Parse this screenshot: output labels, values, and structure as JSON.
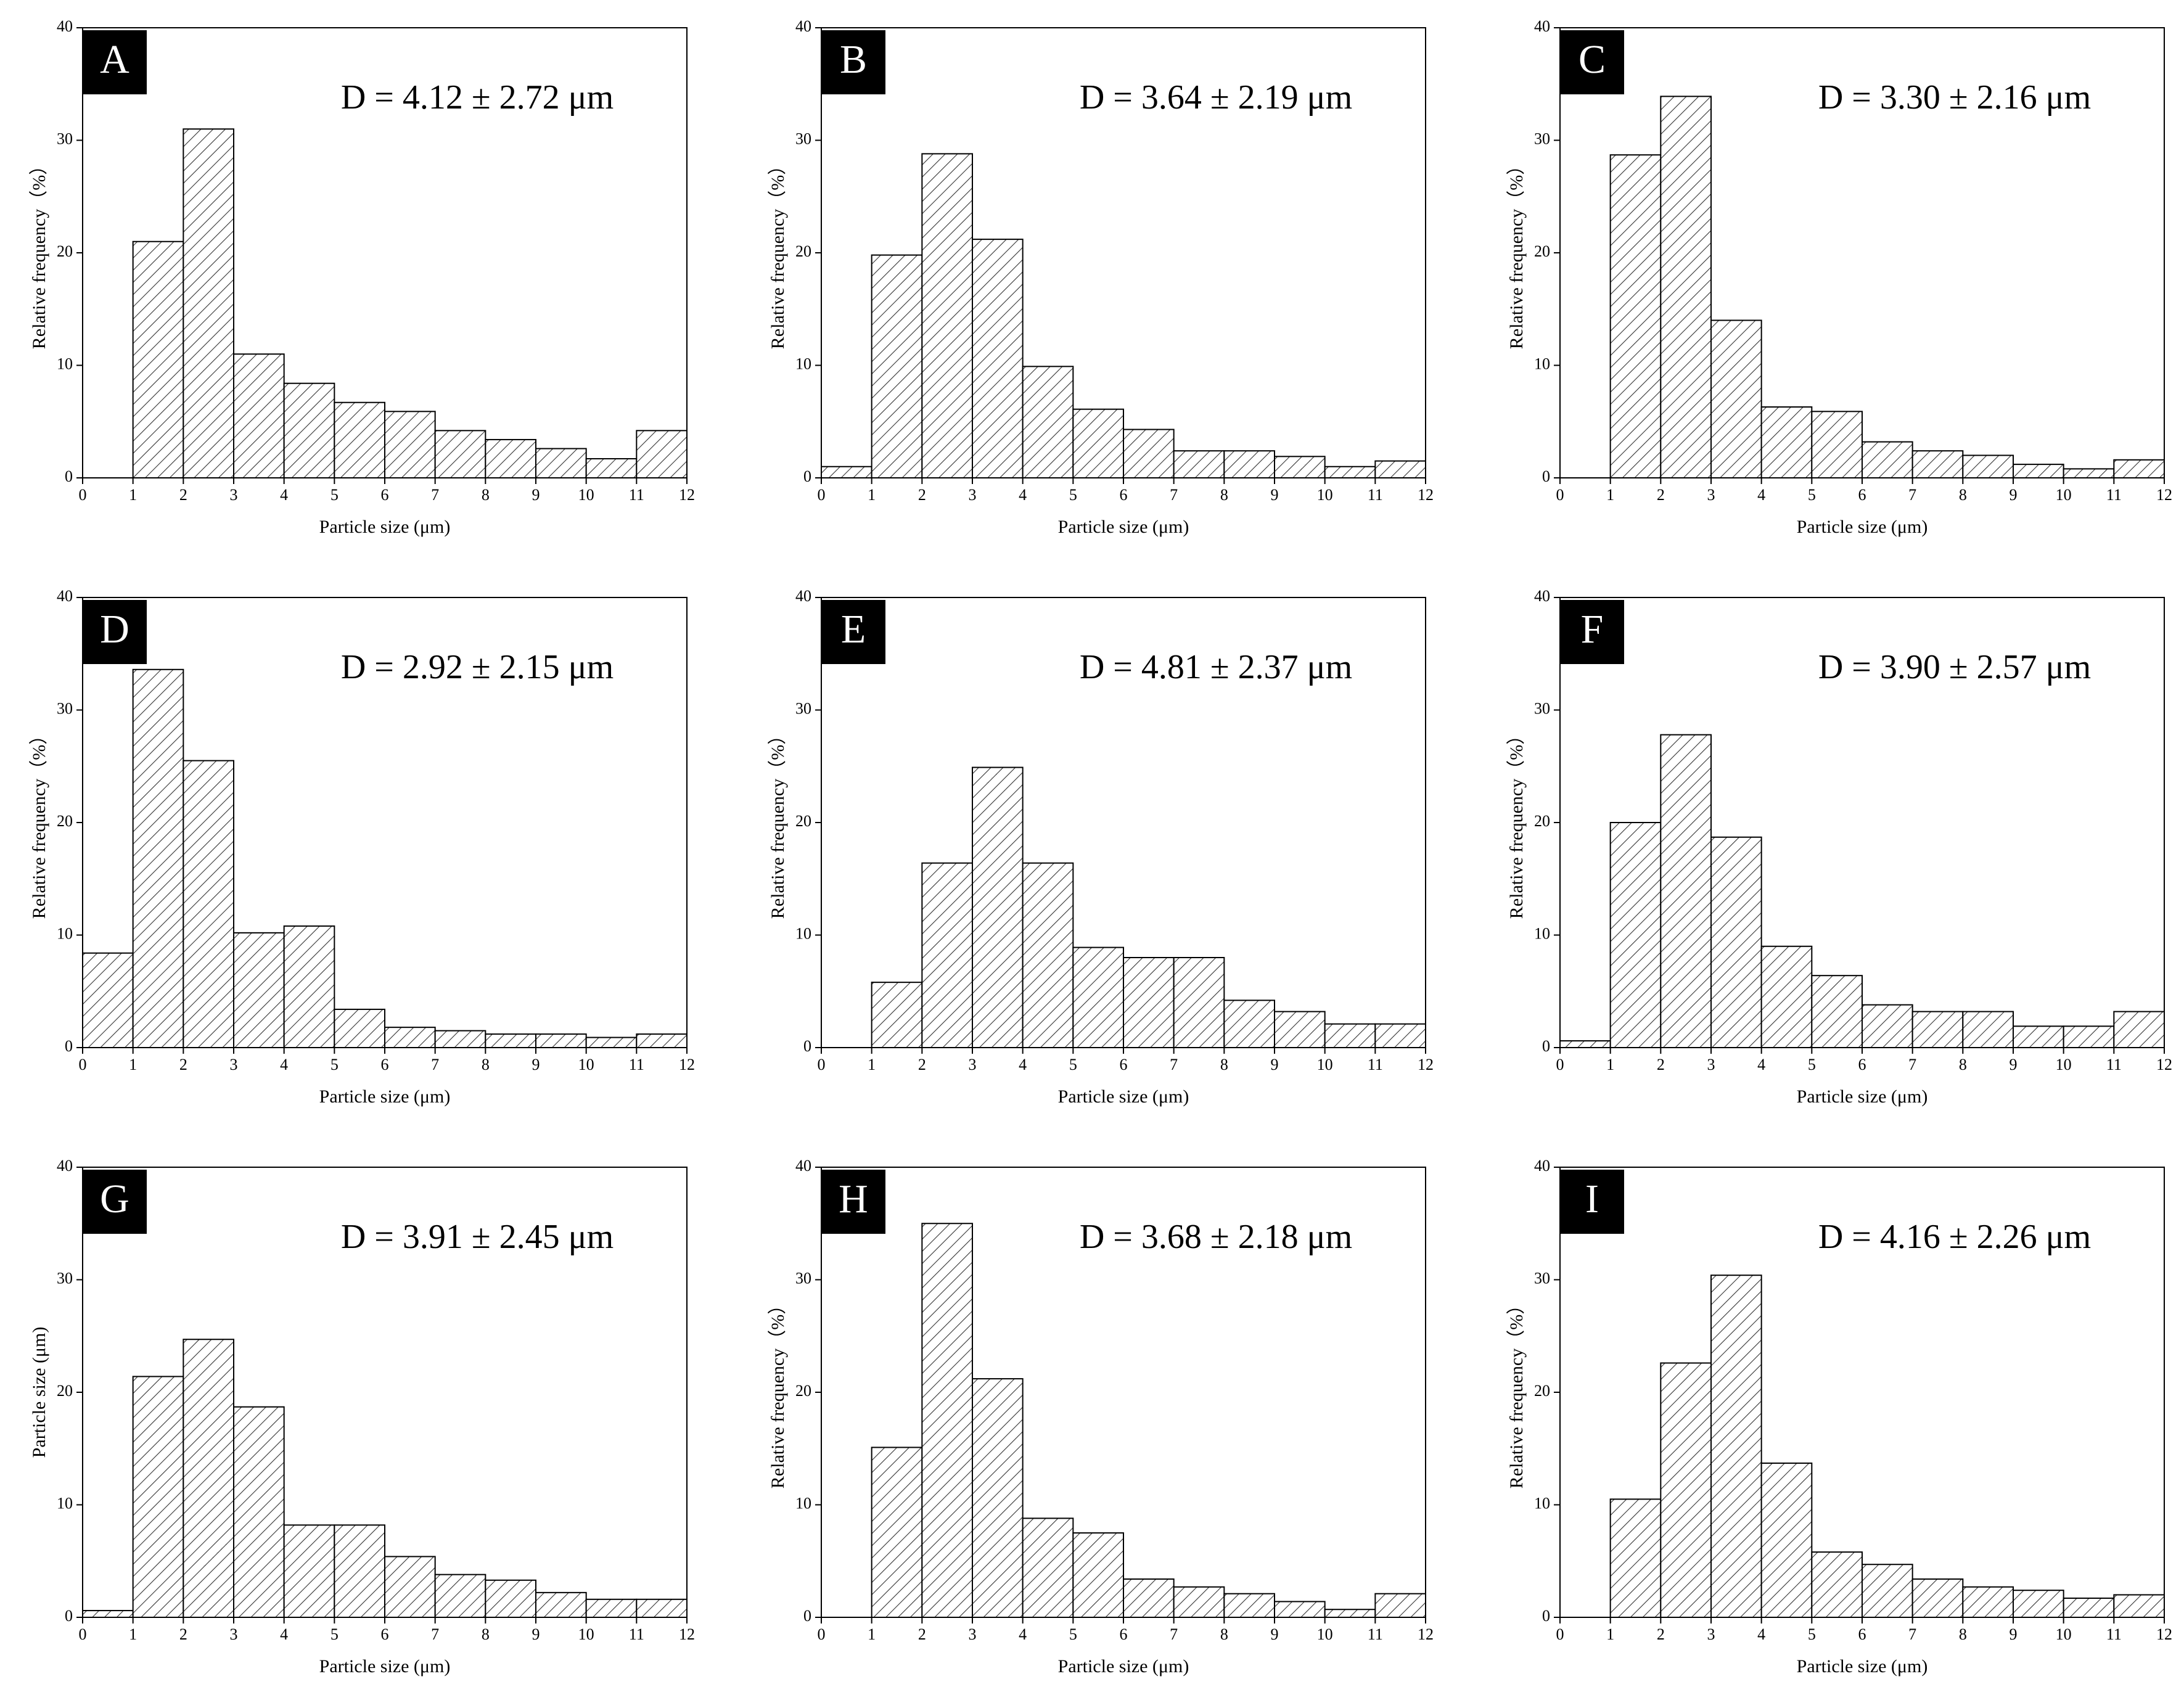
{
  "chart_data": [
    {
      "type": "histogram",
      "title": "A",
      "annotation": "D = 4.12 ± 2.72 μm",
      "xlabel": "Particle size (μm)",
      "ylabel": "Relative frequency（%）",
      "bins": [
        0,
        1,
        2,
        3,
        4,
        5,
        6,
        7,
        8,
        9,
        10,
        11,
        12
      ],
      "values": [
        0,
        21,
        31,
        11,
        8.4,
        6.7,
        5.9,
        4.2,
        3.4,
        2.6,
        1.7,
        4.2
      ],
      "color": "#333333",
      "xlim": [
        0,
        12
      ],
      "ylim": [
        0,
        40
      ],
      "xticks": [
        0,
        1,
        2,
        3,
        4,
        5,
        6,
        7,
        8,
        9,
        10,
        11,
        12
      ],
      "yticks": [
        0,
        10,
        20,
        30,
        40
      ]
    },
    {
      "type": "histogram",
      "title": "B",
      "annotation": "D = 3.64 ± 2.19 μm",
      "xlabel": "Particle size (μm)",
      "ylabel": "Relative frequency（%）",
      "bins": [
        0,
        1,
        2,
        3,
        4,
        5,
        6,
        7,
        8,
        9,
        10,
        11,
        12
      ],
      "values": [
        1,
        19.8,
        28.8,
        21.2,
        9.9,
        6.1,
        4.3,
        2.4,
        2.4,
        1.9,
        1,
        1.5
      ],
      "color": "#333333",
      "xlim": [
        0,
        12
      ],
      "ylim": [
        0,
        40
      ],
      "xticks": [
        0,
        1,
        2,
        3,
        4,
        5,
        6,
        7,
        8,
        9,
        10,
        11,
        12
      ],
      "yticks": [
        0,
        10,
        20,
        30,
        40
      ]
    },
    {
      "type": "histogram",
      "title": "C",
      "annotation": "D = 3.30 ± 2.16 μm",
      "xlabel": "Particle size (μm)",
      "ylabel": "Relative frequency（%）",
      "bins": [
        0,
        1,
        2,
        3,
        4,
        5,
        6,
        7,
        8,
        9,
        10,
        11,
        12
      ],
      "values": [
        0,
        28.7,
        33.9,
        14,
        6.3,
        5.9,
        3.2,
        2.4,
        2,
        1.2,
        0.8,
        1.6
      ],
      "color": "#333333",
      "xlim": [
        0,
        12
      ],
      "ylim": [
        0,
        40
      ],
      "xticks": [
        0,
        1,
        2,
        3,
        4,
        5,
        6,
        7,
        8,
        9,
        10,
        11,
        12
      ],
      "yticks": [
        0,
        10,
        20,
        30,
        40
      ]
    },
    {
      "type": "histogram",
      "title": "D",
      "annotation": "D = 2.92 ± 2.15 μm",
      "xlabel": "Particle size (μm)",
      "ylabel": "Relative frequency（%）",
      "bins": [
        0,
        1,
        2,
        3,
        4,
        5,
        6,
        7,
        8,
        9,
        10,
        11,
        12
      ],
      "values": [
        8.4,
        33.6,
        25.5,
        10.2,
        10.8,
        3.4,
        1.8,
        1.5,
        1.2,
        1.2,
        0.9,
        1.2
      ],
      "color": "#333333",
      "xlim": [
        0,
        12
      ],
      "ylim": [
        0,
        40
      ],
      "xticks": [
        0,
        1,
        2,
        3,
        4,
        5,
        6,
        7,
        8,
        9,
        10,
        11,
        12
      ],
      "yticks": [
        0,
        10,
        20,
        30,
        40
      ]
    },
    {
      "type": "histogram",
      "title": "E",
      "annotation": "D = 4.81 ± 2.37 μm",
      "xlabel": "Particle size (μm)",
      "ylabel": "Relative frequency（%）",
      "bins": [
        0,
        1,
        2,
        3,
        4,
        5,
        6,
        7,
        8,
        9,
        10,
        11,
        12
      ],
      "values": [
        0,
        5.8,
        16.4,
        24.9,
        16.4,
        8.9,
        8,
        8,
        4.2,
        3.2,
        2.1,
        2.1
      ],
      "color": "#333333",
      "xlim": [
        0,
        12
      ],
      "ylim": [
        0,
        40
      ],
      "xticks": [
        0,
        1,
        2,
        3,
        4,
        5,
        6,
        7,
        8,
        9,
        10,
        11,
        12
      ],
      "yticks": [
        0,
        10,
        20,
        30,
        40
      ]
    },
    {
      "type": "histogram",
      "title": "F",
      "annotation": "D = 3.90 ± 2.57 μm",
      "xlabel": "Particle size (μm)",
      "ylabel": "Relative frequency（%）",
      "bins": [
        0,
        1,
        2,
        3,
        4,
        5,
        6,
        7,
        8,
        9,
        10,
        11,
        12
      ],
      "values": [
        0.6,
        20,
        27.8,
        18.7,
        9,
        6.4,
        3.8,
        3.2,
        3.2,
        1.9,
        1.9,
        3.2
      ],
      "color": "#333333",
      "xlim": [
        0,
        12
      ],
      "ylim": [
        0,
        40
      ],
      "xticks": [
        0,
        1,
        2,
        3,
        4,
        5,
        6,
        7,
        8,
        9,
        10,
        11,
        12
      ],
      "yticks": [
        0,
        10,
        20,
        30,
        40
      ]
    },
    {
      "type": "histogram",
      "title": "G",
      "annotation": "D = 3.91 ± 2.45 μm",
      "xlabel": "Particle size (μm)",
      "ylabel": "Particle size (μm)",
      "bins": [
        0,
        1,
        2,
        3,
        4,
        5,
        6,
        7,
        8,
        9,
        10,
        11,
        12
      ],
      "values": [
        0.6,
        21.4,
        24.7,
        18.7,
        8.2,
        8.2,
        5.4,
        3.8,
        3.3,
        2.2,
        1.6,
        1.6
      ],
      "color": "#333333",
      "xlim": [
        0,
        12
      ],
      "ylim": [
        0,
        40
      ],
      "xticks": [
        0,
        1,
        2,
        3,
        4,
        5,
        6,
        7,
        8,
        9,
        10,
        11,
        12
      ],
      "yticks": [
        0,
        10,
        20,
        30,
        40
      ]
    },
    {
      "type": "histogram",
      "title": "H",
      "annotation": "D = 3.68 ± 2.18 μm",
      "xlabel": "Particle size (μm)",
      "ylabel": "Relative frequency（%）",
      "bins": [
        0,
        1,
        2,
        3,
        4,
        5,
        6,
        7,
        8,
        9,
        10,
        11,
        12
      ],
      "values": [
        0,
        15.1,
        35,
        21.2,
        8.8,
        7.5,
        3.4,
        2.7,
        2.1,
        1.4,
        0.7,
        2.1
      ],
      "color": "#333333",
      "xlim": [
        0,
        12
      ],
      "ylim": [
        0,
        40
      ],
      "xticks": [
        0,
        1,
        2,
        3,
        4,
        5,
        6,
        7,
        8,
        9,
        10,
        11,
        12
      ],
      "yticks": [
        0,
        10,
        20,
        30,
        40
      ]
    },
    {
      "type": "histogram",
      "title": "I",
      "annotation": "D = 4.16 ± 2.26 μm",
      "xlabel": "Particle size (μm)",
      "ylabel": "Relative frequency（%）",
      "bins": [
        0,
        1,
        2,
        3,
        4,
        5,
        6,
        7,
        8,
        9,
        10,
        11,
        12
      ],
      "values": [
        0,
        10.5,
        22.6,
        30.4,
        13.7,
        5.8,
        4.7,
        3.4,
        2.7,
        2.4,
        1.7,
        2
      ],
      "color": "#333333",
      "xlim": [
        0,
        12
      ],
      "ylim": [
        0,
        40
      ],
      "xticks": [
        0,
        1,
        2,
        3,
        4,
        5,
        6,
        7,
        8,
        9,
        10,
        11,
        12
      ],
      "yticks": [
        0,
        10,
        20,
        30,
        40
      ]
    }
  ]
}
